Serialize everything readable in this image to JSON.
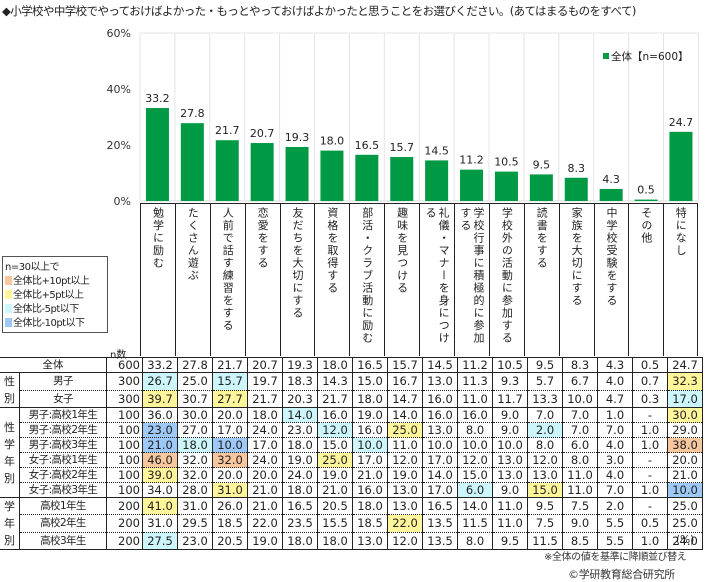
{
  "title": "◆小学校や中学校でやっておけばよかった・もっとやっておけばよかったと思うことをお選びください。(あてはまるものをすべて)",
  "legend": {
    "label": "全体【n=600】",
    "color": "#009944"
  },
  "key": {
    "heading": "n=30以上で",
    "items": [
      {
        "label": "全体比+10pt以上",
        "color": "#f8c79e"
      },
      {
        "label": "全体比+5pt以上",
        "color": "#fff59a"
      },
      {
        "label": "全体比-5pt以下",
        "color": "#ccf6fb"
      },
      {
        "label": "全体比-10pt以下",
        "color": "#9ec8f5"
      }
    ]
  },
  "n_header": "n数",
  "unit": "(%)",
  "note": "※全体の値を基準に降順並び替え",
  "copyright": "©学研教育総合研究所",
  "chart_data": {
    "type": "bar",
    "title": "◆小学校や中学校でやっておけばよかった・もっとやっておけばよかったと思うことをお選びください。(あてはまるものをすべて)",
    "xlabel": "",
    "ylabel": "",
    "ylim": [
      0,
      60
    ],
    "yticks": [
      0,
      20,
      40,
      60
    ],
    "ytick_labels": [
      "0%",
      "20%",
      "40%",
      "60%"
    ],
    "grid": "vertical",
    "legend_position": "top-right",
    "categories": [
      "勉学に励む",
      "たくさん遊ぶ",
      "人前で話す練習をする",
      "恋愛をする",
      "友だちを大切にする",
      "資格を取得する",
      "部活・クラブ活動に励む",
      "趣味を見つける",
      "礼儀・マナーを身につける",
      "学校行事に積極的に参加する",
      "学校外の活動に参加する",
      "読書をする",
      "家族を大切にする",
      "中学校受験をする",
      "その他",
      "特になし"
    ],
    "series": [
      {
        "name": "全体【n=600】",
        "values": [
          33.2,
          27.8,
          21.7,
          20.7,
          19.3,
          18.0,
          16.5,
          15.7,
          14.5,
          11.2,
          10.5,
          9.5,
          8.3,
          4.3,
          0.5,
          24.7
        ]
      }
    ]
  },
  "table": {
    "groups": [
      {
        "label": "",
        "rows": [
          0
        ]
      },
      {
        "label": "性別",
        "rows": [
          1,
          2
        ]
      },
      {
        "label": "性学年別",
        "rows": [
          3,
          4,
          5,
          6,
          7,
          8
        ]
      },
      {
        "label": "学年別",
        "rows": [
          9,
          10,
          11
        ]
      }
    ],
    "rows": [
      {
        "label": "全体",
        "n": "600",
        "values": [
          "33.2",
          "27.8",
          "21.7",
          "20.7",
          "19.3",
          "18.0",
          "16.5",
          "15.7",
          "14.5",
          "11.2",
          "10.5",
          "9.5",
          "8.3",
          "4.3",
          "0.5",
          "24.7"
        ],
        "hl": [
          "",
          "",
          "",
          "",
          "",
          "",
          "",
          "",
          "",
          "",
          "",
          "",
          "",
          "",
          "",
          ""
        ]
      },
      {
        "label": "男子",
        "n": "300",
        "values": [
          "26.7",
          "25.0",
          "15.7",
          "19.7",
          "18.3",
          "14.3",
          "15.0",
          "16.7",
          "13.0",
          "11.3",
          "9.3",
          "5.7",
          "6.7",
          "4.0",
          "0.7",
          "32.3"
        ],
        "hl": [
          "lb",
          "",
          "lb",
          "",
          "",
          "",
          "",
          "",
          "",
          "",
          "",
          "",
          "",
          "",
          "",
          "ye"
        ]
      },
      {
        "label": "女子",
        "n": "300",
        "values": [
          "39.7",
          "30.7",
          "27.7",
          "21.7",
          "20.3",
          "21.7",
          "18.0",
          "14.7",
          "16.0",
          "11.0",
          "11.7",
          "13.3",
          "10.0",
          "4.7",
          "0.3",
          "17.0"
        ],
        "hl": [
          "ye",
          "",
          "ye",
          "",
          "",
          "",
          "",
          "",
          "",
          "",
          "",
          "",
          "",
          "",
          "",
          "lb"
        ]
      },
      {
        "label": "男子:高校1年生",
        "n": "100",
        "values": [
          "36.0",
          "30.0",
          "20.0",
          "18.0",
          "14.0",
          "16.0",
          "19.0",
          "14.0",
          "16.0",
          "16.0",
          "9.0",
          "7.0",
          "7.0",
          "1.0",
          "-",
          "30.0"
        ],
        "hl": [
          "",
          "",
          "",
          "",
          "lb",
          "",
          "",
          "",
          "",
          "",
          "",
          "",
          "",
          "",
          "",
          "ye"
        ]
      },
      {
        "label": "男子:高校2年生",
        "n": "100",
        "values": [
          "23.0",
          "27.0",
          "17.0",
          "24.0",
          "23.0",
          "12.0",
          "16.0",
          "25.0",
          "13.0",
          "8.0",
          "9.0",
          "2.0",
          "7.0",
          "7.0",
          "1.0",
          "29.0"
        ],
        "hl": [
          "bl",
          "",
          "",
          "",
          "",
          "lb",
          "",
          "ye",
          "",
          "",
          "",
          "lb",
          "",
          "",
          "",
          ""
        ]
      },
      {
        "label": "男子:高校3年生",
        "n": "100",
        "values": [
          "21.0",
          "18.0",
          "10.0",
          "17.0",
          "18.0",
          "15.0",
          "10.0",
          "11.0",
          "10.0",
          "10.0",
          "10.0",
          "8.0",
          "6.0",
          "4.0",
          "1.0",
          "38.0"
        ],
        "hl": [
          "bl",
          "lb",
          "bl",
          "",
          "",
          "",
          "lb",
          "",
          "",
          "",
          "",
          "",
          "",
          "",
          "",
          "or"
        ]
      },
      {
        "label": "女子:高校1年生",
        "n": "100",
        "values": [
          "46.0",
          "32.0",
          "32.0",
          "24.0",
          "19.0",
          "25.0",
          "17.0",
          "12.0",
          "17.0",
          "12.0",
          "13.0",
          "12.0",
          "8.0",
          "3.0",
          "-",
          "20.0"
        ],
        "hl": [
          "or",
          "",
          "or",
          "",
          "",
          "ye",
          "",
          "",
          "",
          "",
          "",
          "",
          "",
          "",
          "",
          ""
        ]
      },
      {
        "label": "女子:高校2年生",
        "n": "100",
        "values": [
          "39.0",
          "32.0",
          "20.0",
          "20.0",
          "24.0",
          "19.0",
          "21.0",
          "19.0",
          "14.0",
          "15.0",
          "13.0",
          "13.0",
          "11.0",
          "4.0",
          "-",
          "21.0"
        ],
        "hl": [
          "ye",
          "",
          "",
          "",
          "",
          "",
          "",
          "",
          "",
          "",
          "",
          "",
          "",
          "",
          "",
          ""
        ]
      },
      {
        "label": "女子:高校3年生",
        "n": "100",
        "values": [
          "34.0",
          "28.0",
          "31.0",
          "21.0",
          "18.0",
          "21.0",
          "16.0",
          "13.0",
          "17.0",
          "6.0",
          "9.0",
          "15.0",
          "11.0",
          "7.0",
          "1.0",
          "10.0"
        ],
        "hl": [
          "",
          "",
          "ye",
          "",
          "",
          "",
          "",
          "",
          "",
          "lb",
          "",
          "ye",
          "",
          "",
          "",
          "bl"
        ]
      },
      {
        "label": "高校1年生",
        "n": "200",
        "values": [
          "41.0",
          "31.0",
          "26.0",
          "21.0",
          "16.5",
          "20.5",
          "18.0",
          "13.0",
          "16.5",
          "14.0",
          "11.0",
          "9.5",
          "7.5",
          "2.0",
          "-",
          "25.0"
        ],
        "hl": [
          "ye",
          "",
          "",
          "",
          "",
          "",
          "",
          "",
          "",
          "",
          "",
          "",
          "",
          "",
          "",
          ""
        ]
      },
      {
        "label": "高校2年生",
        "n": "200",
        "values": [
          "31.0",
          "29.5",
          "18.5",
          "22.0",
          "23.5",
          "15.5",
          "18.5",
          "22.0",
          "13.5",
          "11.5",
          "11.0",
          "7.5",
          "9.0",
          "5.5",
          "0.5",
          "25.0"
        ],
        "hl": [
          "",
          "",
          "",
          "",
          "",
          "",
          "",
          "ye",
          "",
          "",
          "",
          "",
          "",
          "",
          "",
          ""
        ]
      },
      {
        "label": "高校3年生",
        "n": "200",
        "values": [
          "27.5",
          "23.0",
          "20.5",
          "19.0",
          "18.0",
          "18.0",
          "13.0",
          "12.0",
          "13.5",
          "8.0",
          "9.5",
          "11.5",
          "8.5",
          "5.5",
          "1.0",
          "24.0"
        ],
        "hl": [
          "lb",
          "",
          "",
          "",
          "",
          "",
          "",
          "",
          "",
          "",
          "",
          "",
          "",
          "",
          "",
          ""
        ]
      }
    ]
  }
}
